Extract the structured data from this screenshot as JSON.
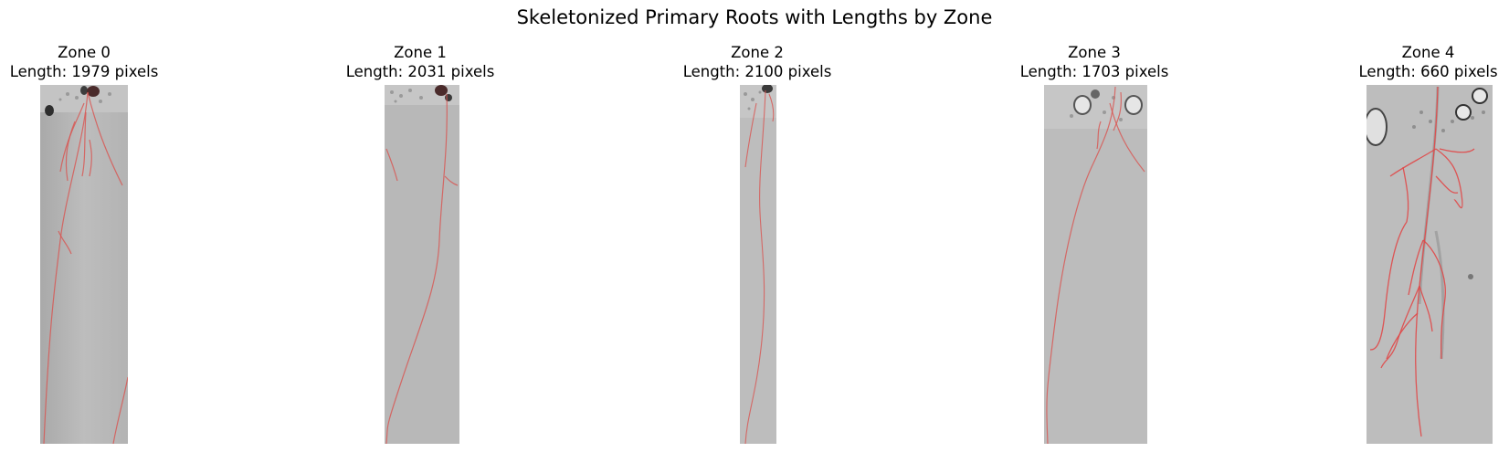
{
  "figure": {
    "title": "Skeletonized Primary Roots with Lengths by Zone"
  },
  "panels": [
    {
      "zone_label": "Zone 0",
      "length_label": "Length: 1979 pixels"
    },
    {
      "zone_label": "Zone 1",
      "length_label": "Length: 2031 pixels"
    },
    {
      "zone_label": "Zone 2",
      "length_label": "Length: 2100 pixels"
    },
    {
      "zone_label": "Zone 3",
      "length_label": "Length: 1703 pixels"
    },
    {
      "zone_label": "Zone 4",
      "length_label": "Length: 660 pixels"
    }
  ],
  "colors": {
    "background": "#ffffff",
    "plate_gray": "#b7b7b7",
    "skeleton_overlay": "#d9534f",
    "root_tissue": "#8c8c8c"
  }
}
